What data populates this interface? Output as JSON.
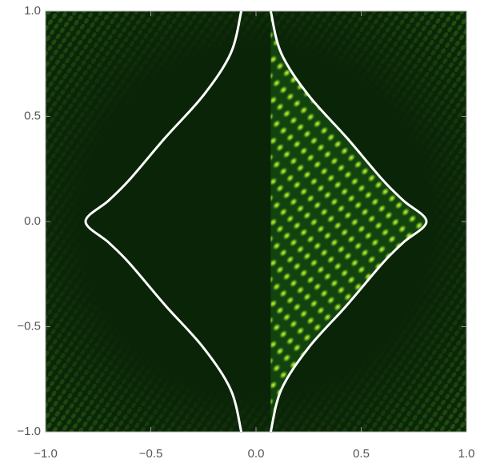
{
  "chart_data": {
    "type": "line",
    "xlim": [
      -1,
      1
    ],
    "ylim": [
      -1,
      1
    ],
    "xticks": [
      {
        "value": -1,
        "label": "−1.0"
      },
      {
        "value": -0.5,
        "label": "−0.5"
      },
      {
        "value": 0,
        "label": "0.0"
      },
      {
        "value": 0.5,
        "label": "0.5"
      },
      {
        "value": 1,
        "label": "1.0"
      }
    ],
    "yticks": [
      {
        "value": -1,
        "label": "−1.0"
      },
      {
        "value": -0.5,
        "label": "−0.5"
      },
      {
        "value": 0,
        "label": "0.0"
      },
      {
        "value": 0.5,
        "label": "0.5"
      },
      {
        "value": 1,
        "label": "1.0"
      }
    ],
    "grid": false,
    "series": [
      {
        "color": "#ffffff",
        "x": [
          0.07,
          0.12,
          0.25,
          0.43,
          0.6,
          0.7,
          0.81,
          0.7,
          0.6,
          0.43,
          0.25,
          0.12,
          0.07,
          null,
          -0.07,
          -0.12,
          -0.25,
          -0.43,
          -0.6,
          -0.7,
          -0.81,
          -0.7,
          -0.6,
          -0.43,
          -0.25,
          -0.12,
          -0.07
        ],
        "values": [
          1,
          0.8,
          0.6,
          0.4,
          0.2,
          0.1,
          0,
          -0.1,
          -0.2,
          -0.4,
          -0.6,
          -0.8,
          -1,
          null,
          1,
          0.8,
          0.6,
          0.4,
          0.2,
          0.1,
          0,
          -0.1,
          -0.2,
          -0.4,
          -0.6,
          -0.8,
          -1
        ]
      }
    ]
  }
}
